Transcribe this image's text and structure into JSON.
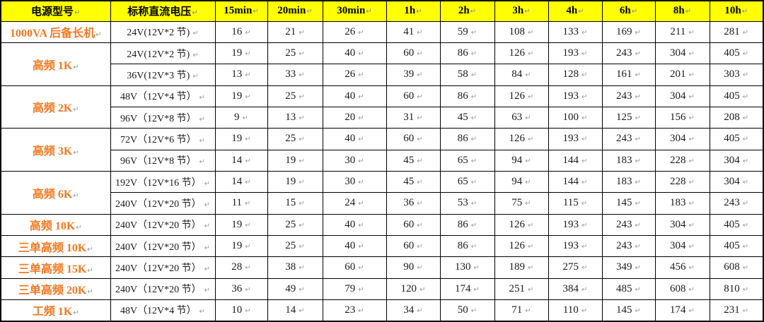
{
  "table": {
    "paragraph_mark": "↵",
    "colors": {
      "header_background": "#FFFF00",
      "model_text": "#F47920",
      "border": "#000000",
      "paragraph_mark": "#8E9BA6"
    },
    "header": {
      "model_label": "电源型号",
      "voltage_label": "标称直流电压",
      "time_columns": [
        "15min",
        "20min",
        "30min",
        "1h",
        "2h",
        "3h",
        "4h",
        "6h",
        "8h",
        "10h"
      ]
    },
    "groups": [
      {
        "model": "1000VA 后备长机",
        "rows": [
          {
            "voltage": "24V(12V*2 节)",
            "values": [
              16,
              21,
              26,
              41,
              59,
              108,
              133,
              169,
              211,
              281
            ]
          }
        ]
      },
      {
        "model": "高频 1K",
        "rows": [
          {
            "voltage": "24V(12V*2 节)",
            "values": [
              19,
              25,
              40,
              60,
              86,
              126,
              193,
              243,
              304,
              405
            ]
          },
          {
            "voltage": "36V(12V*3 节)",
            "values": [
              13,
              33,
              26,
              39,
              58,
              84,
              128,
              161,
              201,
              303
            ]
          }
        ]
      },
      {
        "model": "高频 2K",
        "rows": [
          {
            "voltage": "48V（12V*4 节）",
            "values": [
              19,
              25,
              40,
              60,
              86,
              126,
              193,
              243,
              304,
              405
            ]
          },
          {
            "voltage": "96V（12V*8 节）",
            "values": [
              9,
              13,
              20,
              31,
              45,
              63,
              100,
              125,
              156,
              208
            ]
          }
        ]
      },
      {
        "model": "高频 3K",
        "rows": [
          {
            "voltage": "72V（12V*6 节）",
            "values": [
              19,
              25,
              40,
              60,
              86,
              126,
              193,
              243,
              304,
              405
            ]
          },
          {
            "voltage": "96V（12V*8 节）",
            "values": [
              14,
              19,
              30,
              45,
              65,
              94,
              144,
              183,
              228,
              304
            ]
          }
        ]
      },
      {
        "model": "高频 6K",
        "rows": [
          {
            "voltage": "192V（12V*16 节）",
            "values": [
              14,
              19,
              30,
              45,
              65,
              94,
              144,
              183,
              228,
              304
            ]
          },
          {
            "voltage": "240V（12V*20 节）",
            "values": [
              11,
              15,
              24,
              36,
              53,
              75,
              115,
              145,
              183,
              243
            ]
          }
        ]
      },
      {
        "model": "高频 10K",
        "rows": [
          {
            "voltage": "240V（12V*20 节）",
            "values": [
              19,
              25,
              40,
              60,
              86,
              126,
              193,
              243,
              304,
              405
            ]
          }
        ]
      },
      {
        "model": "三单高频 10K",
        "rows": [
          {
            "voltage": "240V（12V*20 节）",
            "values": [
              19,
              25,
              40,
              60,
              86,
              126,
              193,
              243,
              304,
              405
            ]
          }
        ]
      },
      {
        "model": "三单高频 15K",
        "rows": [
          {
            "voltage": "240V（12V*20 节）",
            "values": [
              28,
              38,
              60,
              90,
              130,
              189,
              275,
              349,
              456,
              608
            ]
          }
        ]
      },
      {
        "model": "三单高频 20K",
        "rows": [
          {
            "voltage": "240V（12V*20 节）",
            "values": [
              36,
              49,
              79,
              120,
              174,
              251,
              384,
              485,
              608,
              810
            ]
          }
        ]
      },
      {
        "model": "工频 1K",
        "rows": [
          {
            "voltage": "48V（12V*4 节）",
            "values": [
              10,
              14,
              23,
              34,
              50,
              71,
              110,
              145,
              174,
              231
            ]
          }
        ]
      }
    ]
  }
}
